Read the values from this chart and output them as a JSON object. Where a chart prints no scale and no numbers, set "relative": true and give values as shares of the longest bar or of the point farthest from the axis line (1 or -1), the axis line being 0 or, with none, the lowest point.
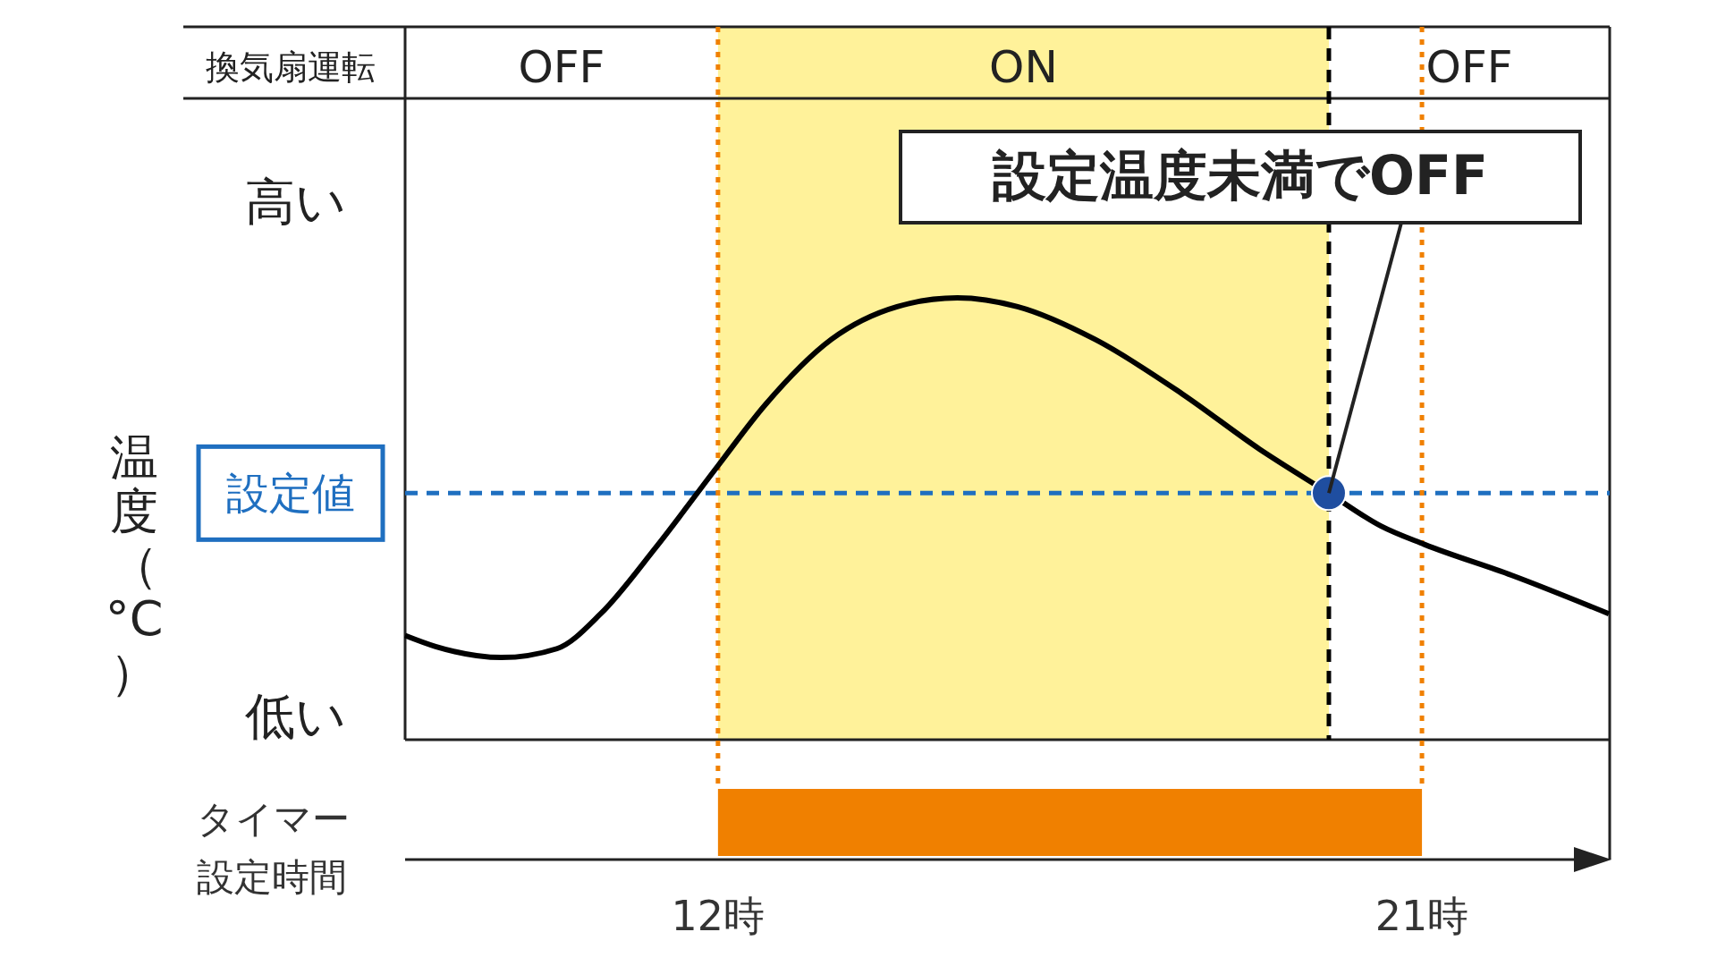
{
  "chart_data": {
    "type": "line",
    "relative": true,
    "xlim": [
      8,
      23.4
    ],
    "xticks": [
      {
        "value": 12,
        "label": "12時"
      },
      {
        "value": 21,
        "label": "21時"
      }
    ],
    "series": [
      {
        "type": "line",
        "color": "#000000",
        "x": [
          8.0,
          8.39,
          9.23,
          9.94,
          10.5,
          11.2,
          12.0,
          12.6,
          13.45,
          14.29,
          15.06,
          15.83,
          16.82,
          17.94,
          18.92,
          19.81,
          20.47,
          21.03,
          22.15,
          23.39
        ],
        "values": [
          0.236,
          0.211,
          0.186,
          0.206,
          0.285,
          0.434,
          0.62,
          0.757,
          0.906,
          0.98,
          1.0,
          0.98,
          0.906,
          0.782,
          0.658,
          0.558,
          0.484,
          0.442,
          0.372,
          0.285
        ]
      },
      {
        "type": "scatter",
        "color": "#1f4ea0",
        "marker": "circle",
        "x": [
          19.81
        ],
        "values": [
          0.558
        ]
      }
    ],
    "ref_lines": [
      {
        "axis": "y",
        "value": 0.558,
        "label": "設定値",
        "color": "#1f6fc0",
        "line_style": "dashed"
      },
      {
        "axis": "x",
        "value": 12,
        "color": "#f08000",
        "line_style": "dotted"
      },
      {
        "axis": "x",
        "value": 21,
        "color": "#f08000",
        "line_style": "dotted"
      },
      {
        "axis": "x",
        "value": 19.81,
        "color": "#000000",
        "line_style": "dashed"
      }
    ],
    "bands": [
      {
        "axis": "x",
        "from": 12,
        "to": 19.81,
        "label": "ON",
        "color": "#fff29a"
      }
    ],
    "annotations": [
      "換気扇運転",
      "OFF",
      "OFF",
      "高い",
      "低い",
      {
        "text": "設定温度未満でOFF",
        "x": 19.81,
        "y": 0.558
      },
      "タイマー設定時間",
      "温度（°C）"
    ]
  }
}
